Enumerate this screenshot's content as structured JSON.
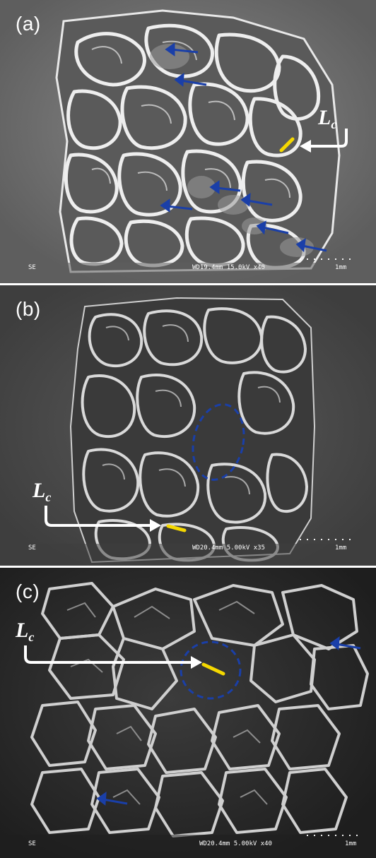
{
  "panels": [
    {
      "label": "(a)",
      "lc": {
        "main": "L",
        "sub": "c"
      },
      "footer": {
        "mode": "SE",
        "params": "WD19.4mm 15.0kV x40",
        "scale": "1mm"
      }
    },
    {
      "label": "(b)",
      "lc": {
        "main": "L",
        "sub": "c"
      },
      "footer": {
        "mode": "SE",
        "params": "WD20.4mm 5.00kV x35",
        "scale": "1mm"
      }
    },
    {
      "label": "(c)",
      "lc": {
        "main": "L",
        "sub": "c"
      },
      "footer": {
        "mode": "SE",
        "params": "WD20.4mm 5.00kV x40",
        "scale": "1mm"
      }
    }
  ],
  "colors": {
    "strut_highlight": "#f2f2f2",
    "blue_marker": "#1a3fa8",
    "yellow_marker": "#f5d800",
    "white_arrow": "#ffffff"
  }
}
